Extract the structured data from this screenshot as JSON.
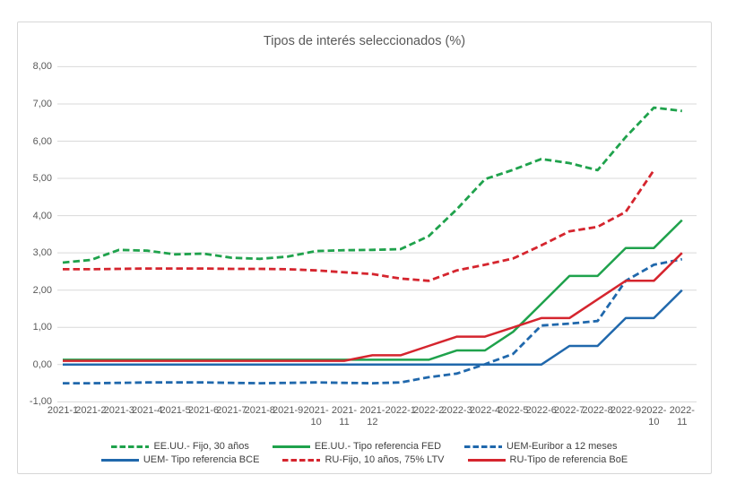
{
  "chart_data": {
    "type": "line",
    "title": "Tipos de interés seleccionados (%)",
    "x_categories": [
      "2021-1",
      "2021-2",
      "2021-3",
      "2021-4",
      "2021-5",
      "2021-6",
      "2021-7",
      "2021-8",
      "2021-9",
      "2021-10",
      "2021-11",
      "2021-12",
      "2022-1",
      "2022-2",
      "2022-3",
      "2022-4",
      "2022-5",
      "2022-6",
      "2022-7",
      "2022-8",
      "2022-9",
      "2022-10",
      "2022-11"
    ],
    "y_tick_labels": [
      "8,00",
      "7,00",
      "6,00",
      "5,00",
      "4,00",
      "3,00",
      "2,00",
      "1,00",
      "0,00",
      "-1,00"
    ],
    "y_tick_values": [
      8,
      7,
      6,
      5,
      4,
      3,
      2,
      1,
      0,
      -1
    ],
    "ylim": [
      -1,
      8
    ],
    "grid": true,
    "legend_position": "bottom",
    "colors": {
      "green": "#1fa24c",
      "blue": "#2068ac",
      "red": "#d5252e"
    },
    "series": [
      {
        "name": "EE.UU.- Fijo, 30 años",
        "color_key": "green",
        "style": "dashed",
        "values": [
          2.74,
          2.81,
          3.08,
          3.06,
          2.96,
          2.98,
          2.87,
          2.84,
          2.9,
          3.05,
          3.07,
          3.08,
          3.1,
          3.45,
          4.17,
          4.98,
          5.23,
          5.52,
          5.41,
          5.22,
          6.11,
          6.9,
          6.81
        ]
      },
      {
        "name": "EE.UU.- Tipo referencia FED",
        "color_key": "green",
        "style": "solid",
        "values": [
          0.13,
          0.13,
          0.13,
          0.13,
          0.13,
          0.13,
          0.13,
          0.13,
          0.13,
          0.13,
          0.13,
          0.13,
          0.13,
          0.13,
          0.38,
          0.38,
          0.88,
          1.63,
          2.38,
          2.38,
          3.13,
          3.13,
          3.88
        ]
      },
      {
        "name": "UEM-Euribor a 12 meses",
        "color_key": "blue",
        "style": "dashed",
        "values": [
          -0.5,
          -0.5,
          -0.49,
          -0.48,
          -0.48,
          -0.48,
          -0.49,
          -0.5,
          -0.49,
          -0.48,
          -0.49,
          -0.5,
          -0.48,
          -0.34,
          -0.24,
          0.01,
          0.29,
          1.05,
          1.1,
          1.17,
          2.25,
          2.68,
          2.83
        ]
      },
      {
        "name": "UEM- Tipo referencia BCE",
        "color_key": "blue",
        "style": "solid",
        "values": [
          0.0,
          0.0,
          0.0,
          0.0,
          0.0,
          0.0,
          0.0,
          0.0,
          0.0,
          0.0,
          0.0,
          0.0,
          0.0,
          0.0,
          0.0,
          0.0,
          0.0,
          0.0,
          0.5,
          0.5,
          1.25,
          1.25,
          2.0
        ]
      },
      {
        "name": "RU-Fijo, 10 años, 75% LTV",
        "color_key": "red",
        "style": "dashed",
        "values": [
          2.56,
          2.56,
          2.57,
          2.58,
          2.58,
          2.58,
          2.57,
          2.57,
          2.56,
          2.53,
          2.48,
          2.43,
          2.31,
          2.25,
          2.53,
          2.68,
          2.85,
          3.2,
          3.58,
          3.7,
          4.1,
          5.22,
          null
        ]
      },
      {
        "name": "RU-Tipo de referencia BoE",
        "color_key": "red",
        "style": "solid",
        "values": [
          0.1,
          0.1,
          0.1,
          0.1,
          0.1,
          0.1,
          0.1,
          0.1,
          0.1,
          0.1,
          0.1,
          0.25,
          0.25,
          0.5,
          0.75,
          0.75,
          1.0,
          1.25,
          1.25,
          1.75,
          2.25,
          2.25,
          3.0
        ]
      }
    ],
    "legend_rows": [
      [
        0,
        1,
        2
      ],
      [
        3,
        4,
        5
      ]
    ]
  }
}
